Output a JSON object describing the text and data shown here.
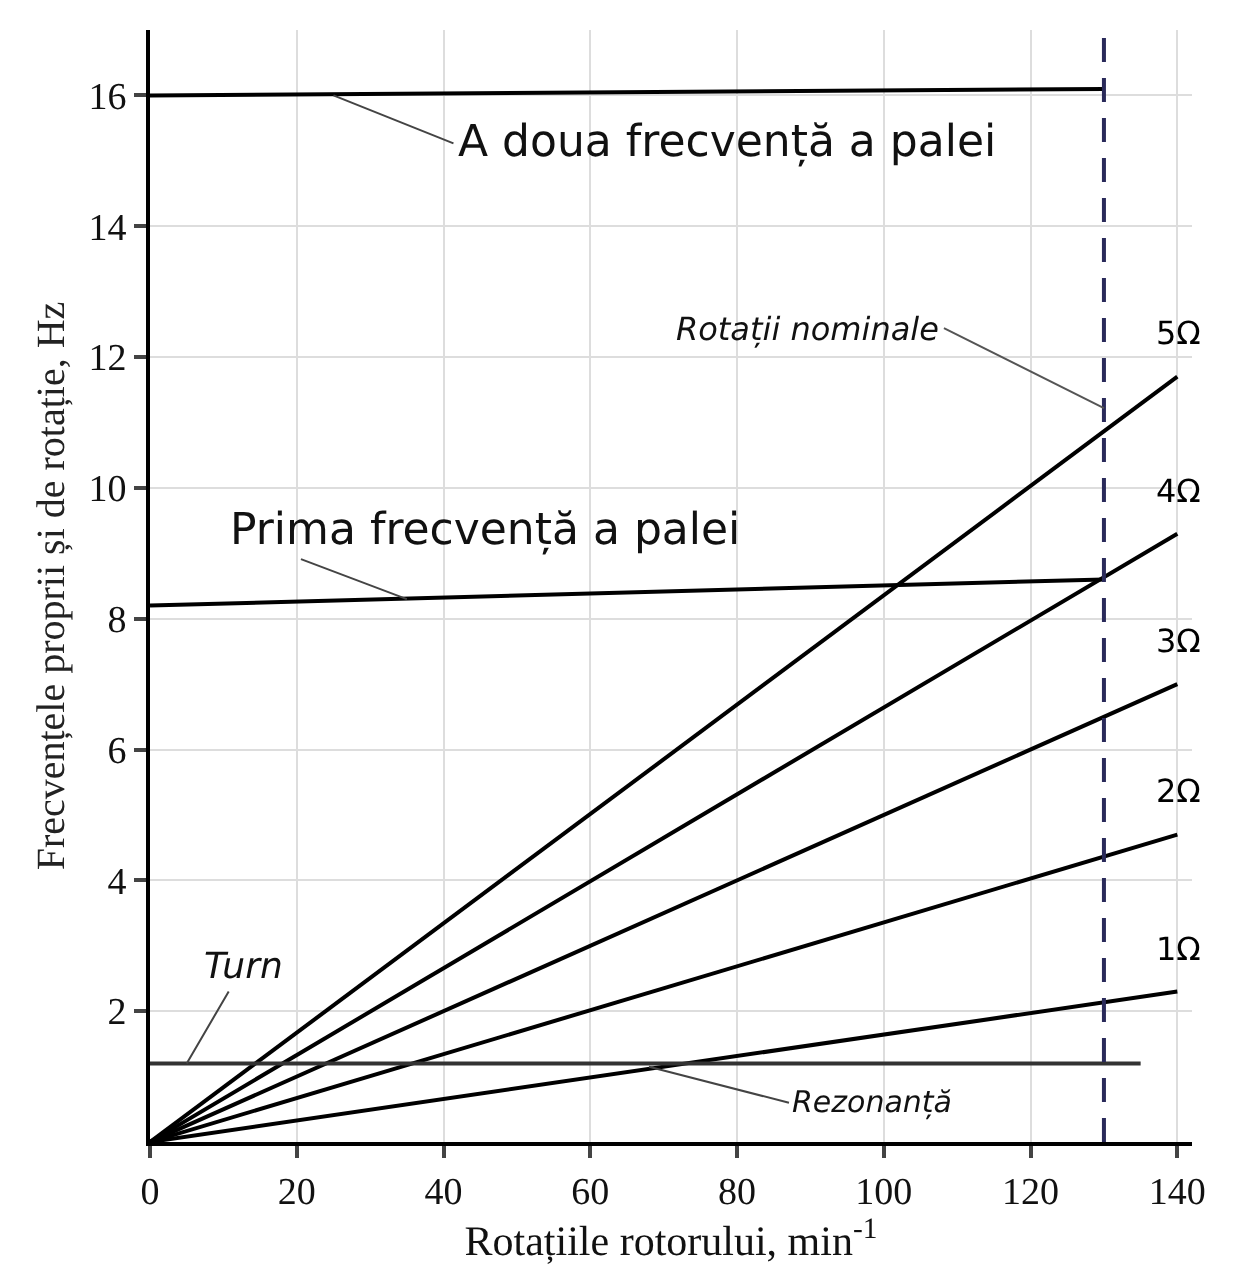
{
  "chart_data": {
    "type": "line",
    "xlabel": "Rotațiile rotorului, min$^{-1}$",
    "ylabel": "Frecvențele proprii și de rotație, Hz",
    "xlim": [
      0,
      142
    ],
    "ylim": [
      0,
      17
    ],
    "xticks": [
      0,
      20,
      40,
      60,
      80,
      100,
      120,
      140
    ],
    "yticks": [
      2,
      4,
      6,
      8,
      10,
      12,
      14,
      16
    ],
    "grid": true,
    "legend": false,
    "marker": "none",
    "line_style": "solid",
    "series": [
      {
        "name": "1Ω",
        "color": "#000000",
        "x": [
          0,
          140
        ],
        "values": [
          0,
          2.3
        ]
      },
      {
        "name": "2Ω",
        "color": "#000000",
        "x": [
          0,
          140
        ],
        "values": [
          0,
          4.7
        ]
      },
      {
        "name": "3Ω",
        "color": "#000000",
        "x": [
          0,
          140
        ],
        "values": [
          0,
          7.0
        ]
      },
      {
        "name": "4Ω",
        "color": "#000000",
        "x": [
          0,
          140
        ],
        "values": [
          0,
          9.3
        ]
      },
      {
        "name": "5Ω",
        "color": "#000000",
        "x": [
          0,
          140
        ],
        "values": [
          0,
          11.7
        ]
      },
      {
        "color": "#000000",
        "x": [
          0,
          130
        ],
        "values": [
          16.0,
          16.1
        ]
      },
      {
        "color": "#000000",
        "x": [
          0,
          130
        ],
        "values": [
          8.2,
          8.6
        ]
      },
      {
        "color": "#333333",
        "x": [
          0,
          135
        ],
        "values": [
          1.2,
          1.2
        ]
      }
    ],
    "ref_lines": [
      {
        "axis": "x",
        "value": 130,
        "label": "Rotații nominale",
        "color": "#2a2a5a",
        "line_style": "dashed"
      }
    ],
    "annotations": [
      {
        "text": "A doua frecvență a palei",
        "x": 25,
        "y": 16.0
      },
      {
        "text": "Prima frecvență a palei",
        "x": 35,
        "y": 8.3
      },
      {
        "text": "Turn",
        "x": 5,
        "y": 1.2
      },
      {
        "text": "Rezonanță",
        "x": 68,
        "y": 1.15
      }
    ]
  }
}
